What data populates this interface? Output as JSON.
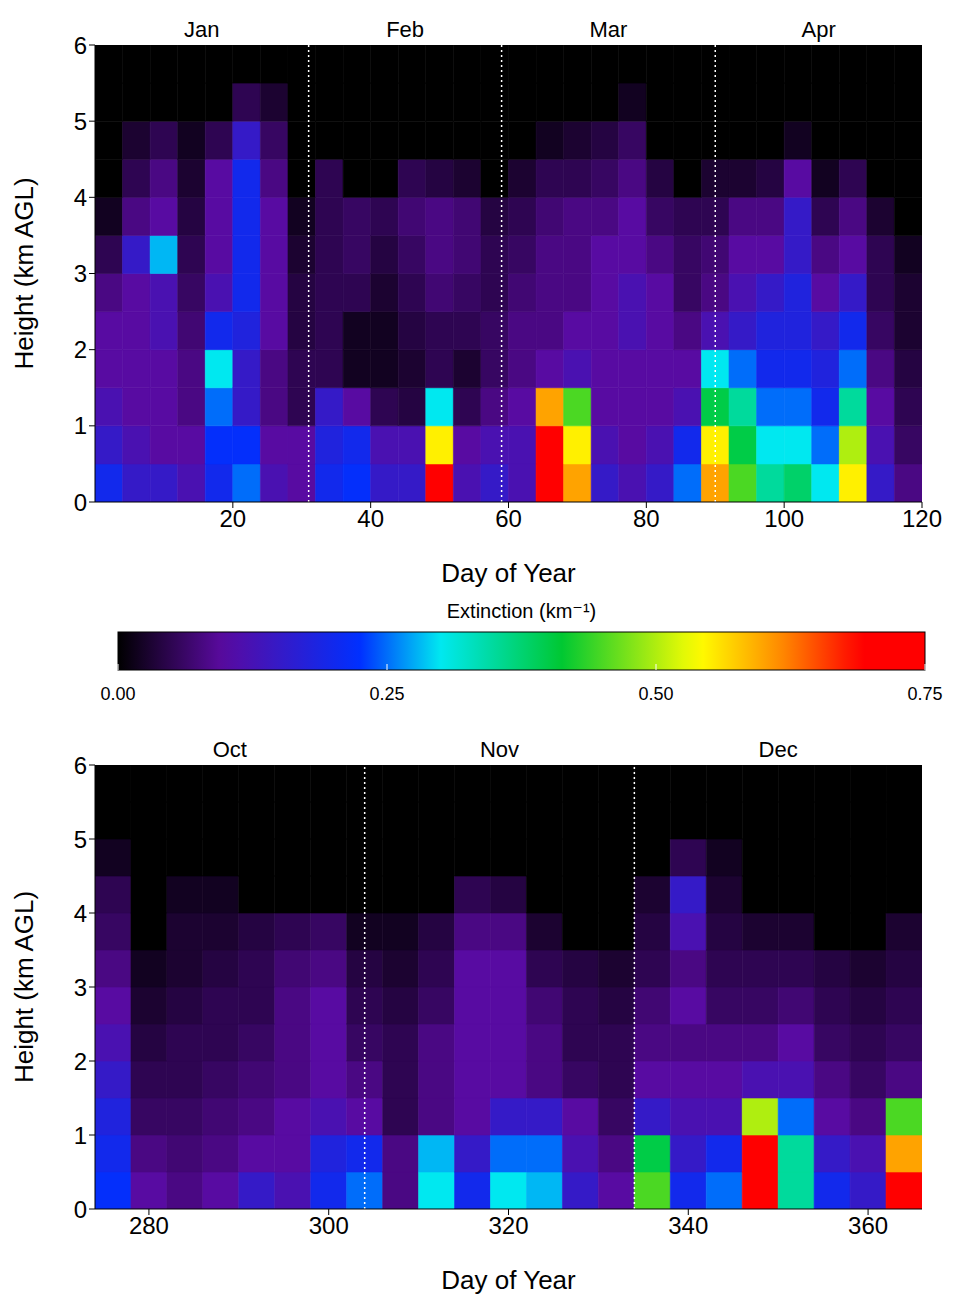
{
  "chart_data": [
    {
      "type": "heatmap",
      "x_label": "Day of Year",
      "y_label": "Height (km AGL)",
      "xlim": [
        0,
        120
      ],
      "xticks": [
        20,
        40,
        60,
        80,
        100,
        120
      ],
      "ylim": [
        0,
        6
      ],
      "yticks": [
        0,
        1,
        2,
        3,
        4,
        5,
        6
      ],
      "months": [
        "Jan",
        "Feb",
        "Mar",
        "Apr"
      ],
      "month_bounds": [
        31,
        59,
        90
      ],
      "x_edges": [
        0,
        4,
        8,
        12,
        16,
        20,
        24,
        28,
        32,
        36,
        40,
        44,
        48,
        52,
        56,
        60,
        64,
        68,
        72,
        76,
        80,
        84,
        88,
        92,
        96,
        100,
        104,
        108,
        112,
        116,
        120
      ],
      "y_edges": [
        0,
        0.5,
        1,
        1.5,
        2,
        2.5,
        3,
        3.5,
        4,
        4.5,
        5,
        5.5,
        6
      ],
      "cells": [
        [
          0.2,
          0.15,
          0.12,
          0.1,
          0.1,
          0.08,
          0.05,
          0.02,
          0,
          0,
          0,
          0
        ],
        [
          0.15,
          0.12,
          0.1,
          0.1,
          0.1,
          0.1,
          0.15,
          0.08,
          0.05,
          0.03,
          0,
          0
        ],
        [
          0.15,
          0.1,
          0.1,
          0.1,
          0.12,
          0.12,
          0.28,
          0.1,
          0.08,
          0.05,
          0,
          0
        ],
        [
          0.12,
          0.1,
          0.08,
          0.08,
          0.07,
          0.06,
          0.05,
          0.04,
          0.03,
          0.02,
          0,
          0
        ],
        [
          0.2,
          0.22,
          0.25,
          0.3,
          0.2,
          0.12,
          0.1,
          0.1,
          0.1,
          0.05,
          0,
          0
        ],
        [
          0.25,
          0.22,
          0.15,
          0.15,
          0.18,
          0.2,
          0.2,
          0.2,
          0.2,
          0.15,
          0.05,
          0
        ],
        [
          0.12,
          0.1,
          0.08,
          0.08,
          0.1,
          0.1,
          0.1,
          0.1,
          0.08,
          0.06,
          0.03,
          0
        ],
        [
          0.1,
          0.1,
          0.05,
          0.05,
          0.04,
          0.04,
          0.03,
          0.02,
          0,
          0,
          0,
          0
        ],
        [
          0.2,
          0.18,
          0.15,
          0.05,
          0.05,
          0.05,
          0.05,
          0.05,
          0.05,
          0,
          0,
          0
        ],
        [
          0.22,
          0.2,
          0.1,
          0.02,
          0.02,
          0.05,
          0.06,
          0.06,
          0,
          0,
          0,
          0
        ],
        [
          0.15,
          0.12,
          0.05,
          0.02,
          0.02,
          0.03,
          0.04,
          0.05,
          0,
          0,
          0,
          0
        ],
        [
          0.15,
          0.12,
          0.04,
          0.03,
          0.04,
          0.05,
          0.06,
          0.07,
          0.05,
          0,
          0,
          0
        ],
        [
          0.72,
          0.55,
          0.3,
          0.05,
          0.05,
          0.07,
          0.08,
          0.08,
          0.04,
          0,
          0,
          0
        ],
        [
          0.12,
          0.1,
          0.05,
          0.03,
          0.05,
          0.06,
          0.07,
          0.07,
          0.03,
          0,
          0,
          0
        ],
        [
          0.15,
          0.12,
          0.08,
          0.06,
          0.06,
          0.05,
          0.05,
          0.04,
          0,
          0,
          0,
          0
        ],
        [
          0.12,
          0.12,
          0.1,
          0.08,
          0.08,
          0.07,
          0.06,
          0.05,
          0.03,
          0,
          0,
          0
        ],
        [
          0.75,
          0.75,
          0.6,
          0.1,
          0.08,
          0.08,
          0.08,
          0.07,
          0.05,
          0.02,
          0,
          0
        ],
        [
          0.6,
          0.55,
          0.45,
          0.12,
          0.1,
          0.08,
          0.08,
          0.08,
          0.05,
          0.03,
          0,
          0
        ],
        [
          0.15,
          0.12,
          0.1,
          0.1,
          0.1,
          0.1,
          0.1,
          0.08,
          0.06,
          0.04,
          0,
          0
        ],
        [
          0.12,
          0.1,
          0.1,
          0.1,
          0.12,
          0.12,
          0.1,
          0.1,
          0.08,
          0.06,
          0.02,
          0
        ],
        [
          0.15,
          0.12,
          0.1,
          0.1,
          0.1,
          0.1,
          0.08,
          0.06,
          0.04,
          0,
          0,
          0
        ],
        [
          0.25,
          0.2,
          0.12,
          0.1,
          0.08,
          0.06,
          0.06,
          0.05,
          0,
          0,
          0,
          0
        ],
        [
          0.6,
          0.55,
          0.4,
          0.3,
          0.12,
          0.08,
          0.07,
          0.05,
          0.03,
          0,
          0,
          0
        ],
        [
          0.45,
          0.4,
          0.35,
          0.25,
          0.15,
          0.12,
          0.1,
          0.08,
          0.03,
          0,
          0,
          0
        ],
        [
          0.35,
          0.3,
          0.25,
          0.2,
          0.18,
          0.15,
          0.1,
          0.08,
          0.04,
          0,
          0,
          0
        ],
        [
          0.38,
          0.3,
          0.25,
          0.2,
          0.18,
          0.18,
          0.15,
          0.15,
          0.1,
          0.02,
          0,
          0
        ],
        [
          0.3,
          0.25,
          0.2,
          0.18,
          0.15,
          0.1,
          0.08,
          0.05,
          0.02,
          0,
          0,
          0
        ],
        [
          0.55,
          0.5,
          0.35,
          0.25,
          0.2,
          0.15,
          0.1,
          0.08,
          0.05,
          0,
          0,
          0
        ],
        [
          0.15,
          0.12,
          0.1,
          0.08,
          0.06,
          0.05,
          0.05,
          0.03,
          0,
          0,
          0,
          0
        ],
        [
          0.08,
          0.06,
          0.05,
          0.04,
          0.03,
          0.03,
          0.02,
          0,
          0,
          0,
          0,
          0
        ]
      ]
    },
    {
      "type": "heatmap",
      "x_label": "Day of Year",
      "y_label": "Height (km AGL)",
      "xlim": [
        274,
        366
      ],
      "xticks": [
        280,
        300,
        320,
        340,
        360
      ],
      "ylim": [
        0,
        6
      ],
      "yticks": [
        0,
        1,
        2,
        3,
        4,
        5,
        6
      ],
      "months": [
        "Oct",
        "Nov",
        "Dec"
      ],
      "month_bounds": [
        304,
        334
      ],
      "x_edges": [
        274,
        278,
        282,
        286,
        290,
        294,
        298,
        302,
        306,
        310,
        314,
        318,
        322,
        326,
        330,
        334,
        338,
        342,
        346,
        350,
        354,
        358,
        362,
        366
      ],
      "y_edges": [
        0,
        0.5,
        1,
        1.5,
        2,
        2.5,
        3,
        3.5,
        4,
        4.5,
        5,
        5.5,
        6
      ],
      "cells": [
        [
          0.22,
          0.2,
          0.18,
          0.15,
          0.12,
          0.1,
          0.08,
          0.06,
          0.05,
          0.02,
          0,
          0
        ],
        [
          0.1,
          0.08,
          0.06,
          0.05,
          0.04,
          0.03,
          0.02,
          0,
          0,
          0,
          0,
          0
        ],
        [
          0.08,
          0.07,
          0.06,
          0.05,
          0.05,
          0.04,
          0.03,
          0.03,
          0.02,
          0,
          0,
          0
        ],
        [
          0.1,
          0.08,
          0.07,
          0.06,
          0.05,
          0.05,
          0.04,
          0.03,
          0.02,
          0,
          0,
          0
        ],
        [
          0.15,
          0.1,
          0.08,
          0.07,
          0.06,
          0.05,
          0.05,
          0.04,
          0,
          0,
          0,
          0
        ],
        [
          0.12,
          0.1,
          0.1,
          0.08,
          0.08,
          0.08,
          0.07,
          0.05,
          0,
          0,
          0,
          0
        ],
        [
          0.2,
          0.18,
          0.12,
          0.1,
          0.1,
          0.1,
          0.08,
          0.06,
          0,
          0,
          0,
          0
        ],
        [
          0.25,
          0.2,
          0.1,
          0.08,
          0.06,
          0.05,
          0.04,
          0.02,
          0,
          0,
          0,
          0
        ],
        [
          0.08,
          0.08,
          0.05,
          0.05,
          0.05,
          0.04,
          0.03,
          0.02,
          0,
          0,
          0,
          0
        ],
        [
          0.3,
          0.28,
          0.08,
          0.08,
          0.08,
          0.06,
          0.05,
          0.04,
          0,
          0,
          0,
          0
        ],
        [
          0.2,
          0.15,
          0.1,
          0.1,
          0.1,
          0.1,
          0.1,
          0.08,
          0.05,
          0,
          0,
          0
        ],
        [
          0.3,
          0.25,
          0.15,
          0.1,
          0.1,
          0.1,
          0.1,
          0.08,
          0.04,
          0,
          0,
          0
        ],
        [
          0.28,
          0.25,
          0.15,
          0.08,
          0.08,
          0.07,
          0.05,
          0.03,
          0,
          0,
          0,
          0
        ],
        [
          0.15,
          0.12,
          0.1,
          0.06,
          0.05,
          0.05,
          0.04,
          0,
          0,
          0,
          0,
          0
        ],
        [
          0.1,
          0.08,
          0.06,
          0.05,
          0.05,
          0.04,
          0.03,
          0,
          0,
          0,
          0,
          0
        ],
        [
          0.45,
          0.4,
          0.15,
          0.1,
          0.08,
          0.07,
          0.05,
          0.04,
          0.03,
          0,
          0,
          0
        ],
        [
          0.2,
          0.15,
          0.12,
          0.1,
          0.08,
          0.1,
          0.08,
          0.12,
          0.15,
          0.05,
          0,
          0
        ],
        [
          0.25,
          0.2,
          0.12,
          0.1,
          0.08,
          0.06,
          0.05,
          0.04,
          0.03,
          0.02,
          0,
          0
        ],
        [
          0.75,
          0.7,
          0.5,
          0.12,
          0.08,
          0.06,
          0.05,
          0.03,
          0,
          0,
          0,
          0
        ],
        [
          0.35,
          0.35,
          0.25,
          0.12,
          0.1,
          0.07,
          0.05,
          0.03,
          0,
          0,
          0,
          0
        ],
        [
          0.2,
          0.15,
          0.1,
          0.08,
          0.06,
          0.05,
          0.04,
          0,
          0,
          0,
          0,
          0
        ],
        [
          0.15,
          0.12,
          0.08,
          0.06,
          0.05,
          0.04,
          0.03,
          0,
          0,
          0,
          0,
          0
        ],
        [
          0.72,
          0.6,
          0.45,
          0.08,
          0.06,
          0.05,
          0.04,
          0.03,
          0,
          0,
          0,
          0
        ]
      ]
    }
  ],
  "colorbar": {
    "label": "Extinction (km⁻¹)",
    "range": [
      0,
      0.75
    ],
    "ticks": [
      {
        "value": 0,
        "label": "0.00"
      },
      0.25,
      {
        "value": 0.5,
        "label": "0.50"
      },
      0.75
    ]
  }
}
